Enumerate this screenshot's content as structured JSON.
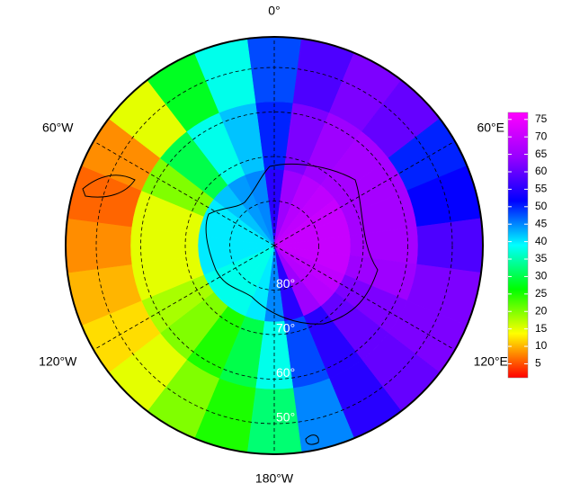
{
  "chart_data": {
    "type": "polar_map",
    "lon_lines": [
      {
        "value": 0,
        "label": "0°"
      },
      {
        "value": 60,
        "label": "60°E"
      },
      {
        "value": 120,
        "label": "120°E"
      },
      {
        "value": 180,
        "label": "180°W"
      },
      {
        "value": -120,
        "label": "120°W"
      },
      {
        "value": -60,
        "label": "60°W"
      }
    ],
    "lat_circles": [
      {
        "value": 80,
        "label": "80°"
      },
      {
        "value": 70,
        "label": "70°"
      },
      {
        "value": 60,
        "label": "60°"
      },
      {
        "value": 50,
        "label": "50°"
      }
    ],
    "field": [
      [
        55,
        65,
        68,
        69,
        70,
        70,
        70,
        70,
        69,
        68,
        65,
        55,
        45,
        40,
        38,
        38,
        38,
        40,
        40,
        40,
        40,
        42,
        44,
        45
      ],
      [
        50,
        62,
        65,
        66,
        66,
        66,
        66,
        65,
        62,
        60,
        55,
        48,
        38,
        30,
        25,
        20,
        18,
        15,
        15,
        15,
        20,
        30,
        38,
        42
      ],
      [
        48,
        58,
        62,
        60,
        50,
        52,
        58,
        62,
        62,
        60,
        55,
        45,
        32,
        25,
        20,
        15,
        12,
        10,
        8,
        6,
        8,
        15,
        28,
        38
      ]
    ],
    "colormap": [
      "#ff0000",
      "#ffff00",
      "#00ff00",
      "#00ffff",
      "#0000ff",
      "#9900ff",
      "#ff00ff"
    ],
    "clim": [
      1,
      77
    ],
    "colorbar_ticks": [
      5,
      10,
      15,
      20,
      25,
      30,
      35,
      40,
      45,
      50,
      55,
      60,
      65,
      70,
      75
    ]
  }
}
